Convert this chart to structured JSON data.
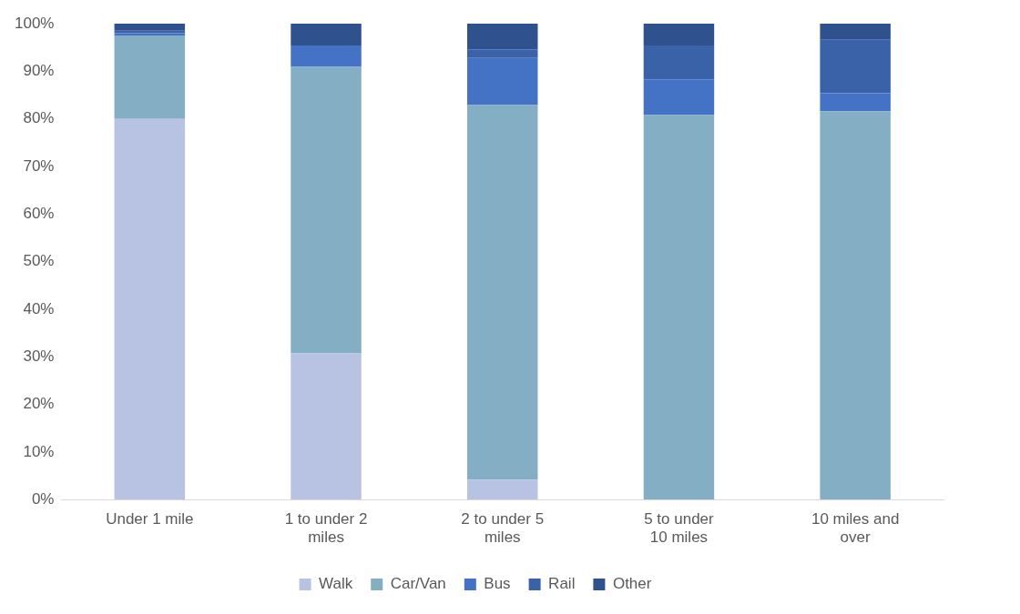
{
  "chart_data": {
    "type": "bar",
    "stacked": true,
    "categories": [
      "Under 1 mile",
      "1 to under 2 miles",
      "2 to under 5 miles",
      "5 to under 10 miles",
      "10 miles and over"
    ],
    "series": [
      {
        "name": "Walk",
        "color": "#b8c2e2",
        "values": [
          80,
          30.7,
          4.2,
          0,
          0
        ]
      },
      {
        "name": "Car/Van",
        "color": "#84aec4",
        "values": [
          17.5,
          60.2,
          78.7,
          80.8,
          81.6
        ]
      },
      {
        "name": "Bus",
        "color": "#4472c4",
        "values": [
          0.5,
          4.5,
          9.9,
          7.5,
          3.8
        ]
      },
      {
        "name": "Rail",
        "color": "#3a62a8",
        "values": [
          0.5,
          0,
          1.8,
          7.1,
          11.2
        ]
      },
      {
        "name": "Other",
        "color": "#2f528f",
        "values": [
          1.5,
          4.6,
          5.4,
          4.6,
          3.4
        ]
      }
    ],
    "ylim": [
      0,
      100
    ],
    "yticks": [
      {
        "value": 0,
        "label": "0%"
      },
      {
        "value": 10,
        "label": "10%"
      },
      {
        "value": 20,
        "label": "20%"
      },
      {
        "value": 30,
        "label": "30%"
      },
      {
        "value": 40,
        "label": "40%"
      },
      {
        "value": 50,
        "label": "50%"
      },
      {
        "value": 60,
        "label": "60%"
      },
      {
        "value": 70,
        "label": "70%"
      },
      {
        "value": 80,
        "label": "80%"
      },
      {
        "value": 90,
        "label": "90%"
      },
      {
        "value": 100,
        "label": "100%"
      }
    ],
    "grid": false,
    "legend": "bottom"
  }
}
